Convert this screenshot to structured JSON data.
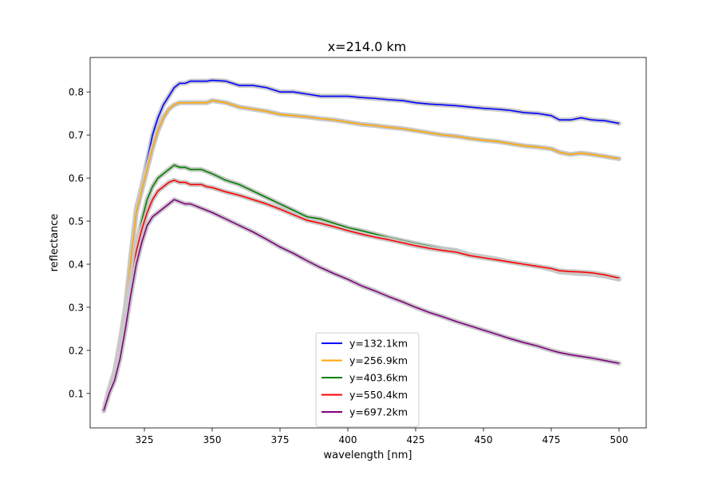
{
  "chart_data": {
    "type": "line",
    "title": "x=214.0 km",
    "xlabel": "wavelength [nm]",
    "ylabel": "reflectance",
    "xlim": [
      305,
      510
    ],
    "ylim": [
      0.02,
      0.88
    ],
    "xticks": [
      325,
      350,
      375,
      400,
      425,
      450,
      475,
      500
    ],
    "xtick_labels": [
      "325",
      "350",
      "375",
      "400",
      "425",
      "450",
      "475",
      "500"
    ],
    "yticks": [
      0.1,
      0.2,
      0.3,
      0.4,
      0.5,
      0.6,
      0.7,
      0.8
    ],
    "ytick_labels": [
      "0.1",
      "0.2",
      "0.3",
      "0.4",
      "0.5",
      "0.6",
      "0.7",
      "0.8"
    ],
    "grid": false,
    "legend_position": "lower center",
    "uncertainty_band_color": "#c8c8c8",
    "series": [
      {
        "name": "y=132.1km",
        "color": "#0000ff",
        "x": [
          310,
          312,
          314,
          316,
          318,
          320,
          322,
          324,
          326,
          328,
          330,
          332,
          334,
          336,
          338,
          340,
          342,
          344,
          346,
          348,
          350,
          355,
          360,
          365,
          370,
          375,
          380,
          385,
          390,
          395,
          400,
          405,
          410,
          415,
          420,
          425,
          430,
          435,
          440,
          445,
          450,
          455,
          460,
          465,
          470,
          475,
          478,
          482,
          486,
          490,
          495,
          500
        ],
        "y": [
          0.06,
          0.11,
          0.15,
          0.22,
          0.3,
          0.42,
          0.53,
          0.58,
          0.64,
          0.7,
          0.74,
          0.77,
          0.79,
          0.81,
          0.82,
          0.82,
          0.825,
          0.825,
          0.825,
          0.825,
          0.827,
          0.825,
          0.815,
          0.815,
          0.81,
          0.8,
          0.8,
          0.795,
          0.79,
          0.79,
          0.79,
          0.787,
          0.785,
          0.782,
          0.78,
          0.775,
          0.772,
          0.77,
          0.768,
          0.765,
          0.762,
          0.76,
          0.757,
          0.752,
          0.75,
          0.745,
          0.735,
          0.735,
          0.74,
          0.735,
          0.733,
          0.727
        ]
      },
      {
        "name": "y=256.9km",
        "color": "#ffa500",
        "x": [
          310,
          312,
          314,
          316,
          318,
          320,
          322,
          324,
          326,
          328,
          330,
          332,
          334,
          336,
          338,
          340,
          342,
          344,
          346,
          348,
          350,
          355,
          360,
          365,
          370,
          375,
          380,
          385,
          390,
          395,
          400,
          405,
          410,
          415,
          420,
          425,
          430,
          435,
          440,
          445,
          450,
          455,
          460,
          465,
          470,
          475,
          478,
          482,
          486,
          490,
          495,
          500
        ],
        "y": [
          0.06,
          0.11,
          0.15,
          0.21,
          0.29,
          0.41,
          0.52,
          0.57,
          0.62,
          0.67,
          0.71,
          0.74,
          0.76,
          0.77,
          0.775,
          0.775,
          0.775,
          0.775,
          0.775,
          0.775,
          0.78,
          0.775,
          0.765,
          0.76,
          0.755,
          0.748,
          0.745,
          0.742,
          0.738,
          0.735,
          0.73,
          0.725,
          0.722,
          0.718,
          0.715,
          0.71,
          0.705,
          0.7,
          0.697,
          0.692,
          0.688,
          0.685,
          0.68,
          0.675,
          0.672,
          0.668,
          0.66,
          0.655,
          0.658,
          0.655,
          0.65,
          0.645
        ]
      },
      {
        "name": "y=403.6km",
        "color": "#008000",
        "x": [
          310,
          312,
          314,
          316,
          318,
          320,
          322,
          324,
          326,
          328,
          330,
          332,
          334,
          336,
          338,
          340,
          342,
          344,
          346,
          348,
          350,
          355,
          360,
          365,
          370,
          375,
          380,
          385,
          390,
          395,
          400,
          405,
          410,
          415,
          420,
          425,
          430,
          435,
          440,
          445,
          450,
          455,
          460,
          465,
          470,
          475,
          478,
          482,
          486,
          490,
          495,
          500
        ],
        "y": [
          0.06,
          0.1,
          0.14,
          0.2,
          0.27,
          0.36,
          0.44,
          0.5,
          0.55,
          0.58,
          0.6,
          0.61,
          0.62,
          0.63,
          0.625,
          0.625,
          0.62,
          0.62,
          0.62,
          0.615,
          0.61,
          0.595,
          0.585,
          0.57,
          0.555,
          0.54,
          0.525,
          0.51,
          0.505,
          0.495,
          0.485,
          0.478,
          0.47,
          0.462,
          0.455,
          0.448,
          0.442,
          0.436,
          0.432,
          0.422,
          0.417,
          0.412,
          0.405,
          0.4,
          0.395,
          0.388,
          0.382,
          0.38,
          0.378,
          0.377,
          0.372,
          0.365
        ]
      },
      {
        "name": "y=550.4km",
        "color": "#ff0000",
        "x": [
          310,
          312,
          314,
          316,
          318,
          320,
          322,
          324,
          326,
          328,
          330,
          332,
          334,
          336,
          338,
          340,
          342,
          344,
          346,
          348,
          350,
          355,
          360,
          365,
          370,
          375,
          380,
          385,
          390,
          395,
          400,
          405,
          410,
          415,
          420,
          425,
          430,
          435,
          440,
          445,
          450,
          455,
          460,
          465,
          470,
          475,
          478,
          482,
          486,
          490,
          495,
          500
        ],
        "y": [
          0.06,
          0.1,
          0.14,
          0.19,
          0.26,
          0.35,
          0.43,
          0.48,
          0.52,
          0.55,
          0.57,
          0.58,
          0.59,
          0.595,
          0.59,
          0.59,
          0.585,
          0.585,
          0.585,
          0.58,
          0.578,
          0.568,
          0.56,
          0.55,
          0.54,
          0.528,
          0.515,
          0.502,
          0.495,
          0.487,
          0.478,
          0.47,
          0.463,
          0.457,
          0.45,
          0.443,
          0.437,
          0.432,
          0.428,
          0.42,
          0.415,
          0.41,
          0.405,
          0.4,
          0.395,
          0.39,
          0.385,
          0.383,
          0.382,
          0.38,
          0.375,
          0.368
        ]
      },
      {
        "name": "y=697.2km",
        "color": "#800080",
        "x": [
          310,
          312,
          314,
          316,
          318,
          320,
          322,
          324,
          326,
          328,
          330,
          332,
          334,
          336,
          338,
          340,
          342,
          344,
          346,
          348,
          350,
          355,
          360,
          365,
          370,
          375,
          380,
          385,
          390,
          395,
          400,
          405,
          410,
          415,
          420,
          425,
          430,
          435,
          440,
          445,
          450,
          455,
          460,
          465,
          470,
          475,
          478,
          482,
          486,
          490,
          495,
          500
        ],
        "y": [
          0.06,
          0.1,
          0.13,
          0.18,
          0.25,
          0.33,
          0.4,
          0.45,
          0.49,
          0.51,
          0.52,
          0.53,
          0.54,
          0.55,
          0.545,
          0.54,
          0.54,
          0.535,
          0.53,
          0.525,
          0.52,
          0.505,
          0.49,
          0.475,
          0.458,
          0.44,
          0.425,
          0.408,
          0.392,
          0.378,
          0.365,
          0.35,
          0.338,
          0.325,
          0.313,
          0.3,
          0.288,
          0.278,
          0.267,
          0.257,
          0.247,
          0.237,
          0.227,
          0.218,
          0.21,
          0.2,
          0.195,
          0.19,
          0.186,
          0.182,
          0.176,
          0.17
        ]
      }
    ]
  }
}
